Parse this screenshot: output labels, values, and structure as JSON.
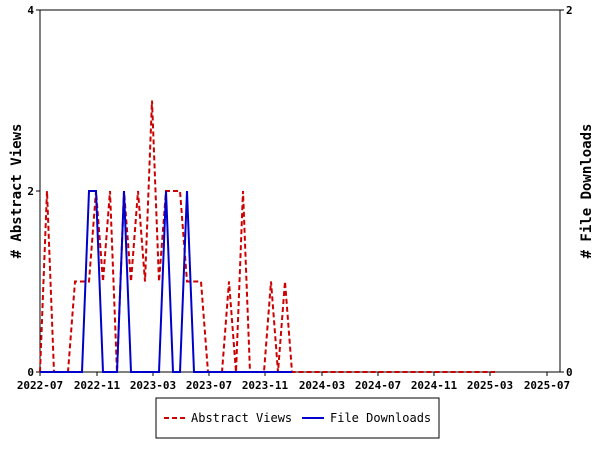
{
  "chart_data": {
    "type": "line",
    "x_tick_labels": [
      "2022-07",
      "2022-11",
      "2023-03",
      "2023-07",
      "2023-11",
      "2024-03",
      "2024-07",
      "2024-11",
      "2025-03",
      "2025-07"
    ],
    "left_axis": {
      "label": "# Abstract Views",
      "ylim": [
        0,
        4
      ],
      "ticks": [
        "0",
        "2",
        "4"
      ]
    },
    "right_axis": {
      "label": "# File Downloads",
      "ylim": [
        0,
        2
      ],
      "ticks": [
        "0",
        "2"
      ]
    },
    "grid": false,
    "legend_position": "bottom",
    "series": [
      {
        "name": "Abstract Views",
        "axis": "left",
        "color": "#cc0000",
        "style": "dashed",
        "x": [
          0,
          1,
          2,
          3,
          4,
          5,
          6,
          7,
          8,
          9,
          10,
          11,
          12,
          13,
          14,
          15,
          16,
          17,
          18,
          19,
          20,
          21,
          22,
          23,
          24,
          25,
          26,
          27,
          28,
          29,
          30,
          31,
          32,
          33,
          34,
          35,
          36,
          37,
          38,
          39,
          40,
          41,
          42,
          43,
          44,
          45,
          46,
          47,
          48,
          49,
          50,
          51,
          52,
          53,
          54,
          55,
          56,
          57,
          58,
          59,
          60,
          61,
          62,
          63,
          64,
          65
        ],
        "values": [
          0,
          2,
          0,
          0,
          0,
          1,
          1,
          1,
          2,
          1,
          2,
          0,
          2,
          1,
          2,
          1,
          3,
          1,
          2,
          2,
          2,
          1,
          1,
          1,
          0,
          0,
          0,
          1,
          0,
          2,
          0,
          0,
          0,
          1,
          0,
          1,
          0,
          0,
          0,
          0,
          0,
          0,
          0,
          0,
          0,
          0,
          0,
          0,
          0,
          0,
          0,
          0,
          0,
          0,
          0,
          0,
          0,
          0,
          0,
          0,
          0,
          0,
          0,
          0,
          0,
          0
        ]
      },
      {
        "name": "File Downloads",
        "axis": "right",
        "color": "#0000cc",
        "style": "solid",
        "x": [
          0,
          1,
          2,
          3,
          4,
          5,
          6,
          7,
          8,
          9,
          10,
          11,
          12,
          13,
          14,
          15,
          16,
          17,
          18,
          19,
          20,
          21,
          22,
          23,
          24,
          25,
          26,
          27,
          28,
          29,
          30,
          31,
          32,
          33,
          34,
          35,
          36
        ],
        "values": [
          0,
          0,
          0,
          0,
          0,
          0,
          0,
          1,
          1,
          0,
          0,
          0,
          1,
          0,
          0,
          0,
          0,
          0,
          1,
          0,
          0,
          1,
          0,
          0,
          0,
          0,
          0,
          0,
          0,
          0,
          0,
          0,
          0,
          0,
          0,
          0,
          0
        ]
      }
    ]
  }
}
